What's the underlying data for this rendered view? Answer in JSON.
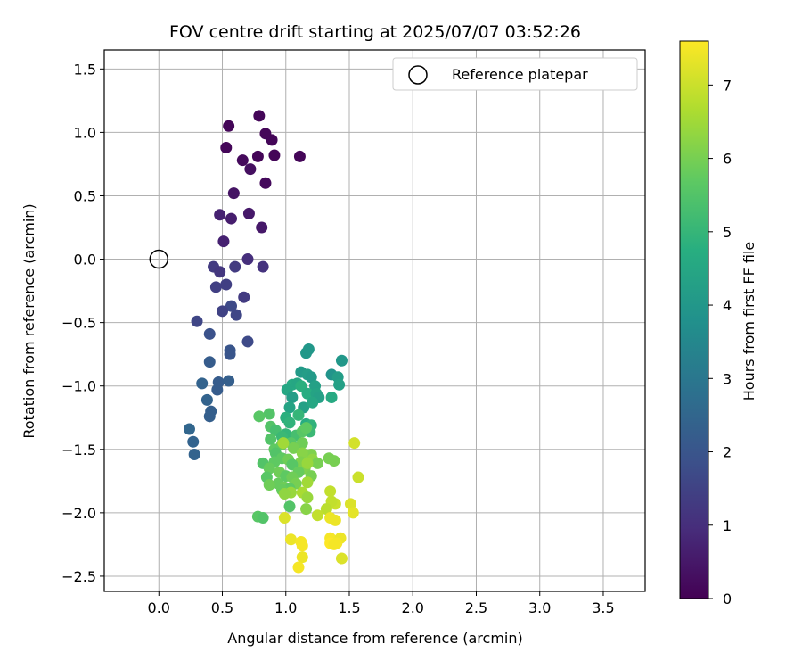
{
  "chart_data": {
    "type": "scatter",
    "title": "FOV centre drift starting at 2025/07/07 03:52:26",
    "xlabel": "Angular distance from reference (arcmin)",
    "ylabel": "Rotation from reference (arcmin)",
    "xlim": [
      -0.43,
      3.83
    ],
    "ylim": [
      -2.62,
      1.65
    ],
    "xticks": [
      0.0,
      0.5,
      1.0,
      1.5,
      2.0,
      2.5,
      3.0,
      3.5
    ],
    "xtick_labels": [
      "0.0",
      "0.5",
      "1.0",
      "1.5",
      "2.0",
      "2.5",
      "3.0",
      "3.5"
    ],
    "yticks": [
      1.5,
      1.0,
      0.5,
      0.0,
      -0.5,
      -1.0,
      -1.5,
      -2.0,
      -2.5
    ],
    "ytick_labels": [
      "1.5",
      "1.0",
      "0.5",
      "0.0",
      "−0.5",
      "−1.0",
      "−1.5",
      "−2.0",
      "−2.5"
    ],
    "grid": true,
    "legend": {
      "position": "top-right",
      "entries": [
        "Reference platepar"
      ]
    },
    "colorbar": {
      "label": "Hours from first FF file",
      "colormap": "viridis",
      "range": [
        0,
        7.6
      ],
      "ticks": [
        0,
        1,
        2,
        3,
        4,
        5,
        6,
        7
      ],
      "tick_labels": [
        "0",
        "1",
        "2",
        "3",
        "4",
        "5",
        "6",
        "7"
      ]
    },
    "reference_point": {
      "x": 0.0,
      "y": 0.0,
      "style": "hollow-circle"
    },
    "points": [
      [
        0.79,
        1.13,
        0.1
      ],
      [
        0.55,
        1.05,
        0.1
      ],
      [
        0.84,
        0.99,
        0.1
      ],
      [
        0.89,
        0.94,
        0.1
      ],
      [
        0.53,
        0.88,
        0.1
      ],
      [
        0.66,
        0.78,
        0.2
      ],
      [
        0.78,
        0.81,
        0.1
      ],
      [
        0.91,
        0.82,
        0.1
      ],
      [
        1.11,
        0.81,
        0.1
      ],
      [
        0.72,
        0.71,
        0.3
      ],
      [
        0.84,
        0.6,
        0.2
      ],
      [
        0.59,
        0.52,
        0.4
      ],
      [
        0.48,
        0.35,
        0.7
      ],
      [
        0.57,
        0.32,
        0.6
      ],
      [
        0.71,
        0.36,
        0.5
      ],
      [
        0.81,
        0.25,
        0.5
      ],
      [
        0.51,
        0.14,
        0.7
      ],
      [
        0.7,
        0.0,
        1.0
      ],
      [
        0.43,
        -0.06,
        1.3
      ],
      [
        0.48,
        -0.1,
        1.2
      ],
      [
        0.6,
        -0.06,
        1.3
      ],
      [
        0.82,
        -0.06,
        1.1
      ],
      [
        0.53,
        -0.2,
        1.4
      ],
      [
        0.45,
        -0.22,
        1.4
      ],
      [
        0.67,
        -0.3,
        1.3
      ],
      [
        0.57,
        -0.37,
        1.7
      ],
      [
        0.5,
        -0.41,
        1.5
      ],
      [
        0.61,
        -0.44,
        1.6
      ],
      [
        0.3,
        -0.49,
        1.6
      ],
      [
        0.4,
        -0.59,
        1.9
      ],
      [
        0.7,
        -0.65,
        1.7
      ],
      [
        0.56,
        -0.72,
        2.0
      ],
      [
        0.56,
        -0.75,
        2.0
      ],
      [
        0.4,
        -0.81,
        2.2
      ],
      [
        0.34,
        -0.98,
        2.4
      ],
      [
        0.47,
        -0.97,
        2.2
      ],
      [
        0.55,
        -0.96,
        2.3
      ],
      [
        0.46,
        -1.03,
        2.2
      ],
      [
        0.38,
        -1.11,
        2.4
      ],
      [
        0.41,
        -1.2,
        2.3
      ],
      [
        0.4,
        -1.24,
        2.3
      ],
      [
        0.24,
        -1.34,
        2.5
      ],
      [
        0.27,
        -1.44,
        2.4
      ],
      [
        0.28,
        -1.54,
        2.4
      ],
      [
        1.18,
        -0.71,
        4.0
      ],
      [
        1.16,
        -0.74,
        4.0
      ],
      [
        1.12,
        -0.89,
        4.1
      ],
      [
        1.17,
        -0.91,
        4.2
      ],
      [
        1.2,
        -0.93,
        4.1
      ],
      [
        1.44,
        -0.8,
        4.0
      ],
      [
        1.36,
        -0.91,
        3.9
      ],
      [
        1.41,
        -0.93,
        4.2
      ],
      [
        1.42,
        -0.99,
        4.3
      ],
      [
        1.05,
        -0.99,
        4.6
      ],
      [
        1.09,
        -0.98,
        4.5
      ],
      [
        1.12,
        -1.0,
        4.8
      ],
      [
        1.01,
        -1.03,
        4.5
      ],
      [
        1.23,
        -1.0,
        4.3
      ],
      [
        1.17,
        -1.06,
        4.7
      ],
      [
        1.24,
        -1.06,
        4.4
      ],
      [
        1.36,
        -1.09,
        4.6
      ],
      [
        1.26,
        -1.09,
        4.3
      ],
      [
        1.05,
        -1.09,
        4.2
      ],
      [
        1.03,
        -1.17,
        4.4
      ],
      [
        1.14,
        -1.17,
        4.3
      ],
      [
        1.21,
        -1.13,
        4.5
      ],
      [
        1.0,
        -1.25,
        4.8
      ],
      [
        1.1,
        -1.23,
        5.0
      ],
      [
        0.87,
        -1.22,
        5.5
      ],
      [
        0.79,
        -1.24,
        5.6
      ],
      [
        1.03,
        -1.29,
        4.9
      ],
      [
        1.16,
        -1.3,
        4.7
      ],
      [
        1.2,
        -1.31,
        4.9
      ],
      [
        0.88,
        -1.32,
        5.5
      ],
      [
        0.92,
        -1.35,
        5.3
      ],
      [
        1.19,
        -1.36,
        5.1
      ],
      [
        1.0,
        -1.38,
        5.0
      ],
      [
        0.97,
        -1.4,
        5.1
      ],
      [
        1.08,
        -1.39,
        5.3
      ],
      [
        1.13,
        -1.36,
        5.6
      ],
      [
        1.16,
        -1.33,
        5.7
      ],
      [
        0.88,
        -1.42,
        5.5
      ],
      [
        0.97,
        -1.46,
        5.8
      ],
      [
        1.04,
        -1.45,
        5.6
      ],
      [
        1.13,
        -1.45,
        5.9
      ],
      [
        1.06,
        -1.49,
        6.0
      ],
      [
        1.2,
        -1.54,
        6.1
      ],
      [
        1.13,
        -1.53,
        6.2
      ],
      [
        0.91,
        -1.5,
        5.7
      ],
      [
        0.92,
        -1.53,
        5.5
      ],
      [
        0.97,
        -1.57,
        5.7
      ],
      [
        1.02,
        -1.58,
        5.9
      ],
      [
        1.12,
        -1.6,
        6.1
      ],
      [
        1.21,
        -1.58,
        6.3
      ],
      [
        1.25,
        -1.61,
        6.0
      ],
      [
        1.34,
        -1.57,
        6.0
      ],
      [
        1.38,
        -1.59,
        6.0
      ],
      [
        0.82,
        -1.61,
        5.5
      ],
      [
        0.91,
        -1.6,
        5.7
      ],
      [
        1.05,
        -1.62,
        5.6
      ],
      [
        1.15,
        -1.65,
        6.1
      ],
      [
        1.17,
        -1.61,
        6.4
      ],
      [
        0.87,
        -1.65,
        5.8
      ],
      [
        0.95,
        -1.68,
        5.9
      ],
      [
        1.1,
        -1.68,
        5.8
      ],
      [
        1.0,
        -1.71,
        5.7
      ],
      [
        1.2,
        -1.71,
        6.0
      ],
      [
        1.05,
        -1.72,
        5.9
      ],
      [
        0.85,
        -1.72,
        5.6
      ],
      [
        0.94,
        -1.77,
        5.8
      ],
      [
        0.99,
        -1.8,
        5.9
      ],
      [
        1.08,
        -1.77,
        6.0
      ],
      [
        1.17,
        -1.76,
        6.5
      ],
      [
        0.87,
        -1.78,
        5.9
      ],
      [
        1.03,
        -1.81,
        5.7
      ],
      [
        0.97,
        -1.82,
        5.8
      ],
      [
        1.13,
        -1.84,
        6.6
      ],
      [
        1.04,
        -1.84,
        6.4
      ],
      [
        0.99,
        -1.85,
        6.3
      ],
      [
        1.17,
        -1.88,
        6.4
      ],
      [
        1.35,
        -1.83,
        6.9
      ],
      [
        1.39,
        -1.93,
        7.0
      ],
      [
        1.36,
        -1.91,
        6.9
      ],
      [
        1.51,
        -1.93,
        7.2
      ],
      [
        1.57,
        -1.72,
        7.0
      ],
      [
        1.54,
        -1.45,
        7.1
      ],
      [
        1.03,
        -1.95,
        5.5
      ],
      [
        1.16,
        -1.97,
        6.2
      ],
      [
        1.32,
        -1.97,
        6.8
      ],
      [
        1.53,
        -2.0,
        7.3
      ],
      [
        1.25,
        -2.02,
        6.9
      ],
      [
        0.78,
        -2.03,
        5.6
      ],
      [
        0.82,
        -2.04,
        5.5
      ],
      [
        0.99,
        -2.04,
        7.2
      ],
      [
        1.35,
        -2.04,
        7.4
      ],
      [
        1.39,
        -2.06,
        7.4
      ],
      [
        1.35,
        -2.2,
        7.5
      ],
      [
        1.43,
        -2.2,
        7.4
      ],
      [
        1.35,
        -2.24,
        7.6
      ],
      [
        1.4,
        -2.24,
        7.5
      ],
      [
        1.38,
        -2.25,
        7.5
      ],
      [
        1.04,
        -2.21,
        7.4
      ],
      [
        1.12,
        -2.23,
        7.5
      ],
      [
        1.13,
        -2.26,
        7.5
      ],
      [
        1.13,
        -2.35,
        7.4
      ],
      [
        1.44,
        -2.36,
        7.2
      ],
      [
        1.1,
        -2.43,
        7.5
      ],
      [
        0.98,
        -1.45,
        6.5
      ]
    ]
  }
}
